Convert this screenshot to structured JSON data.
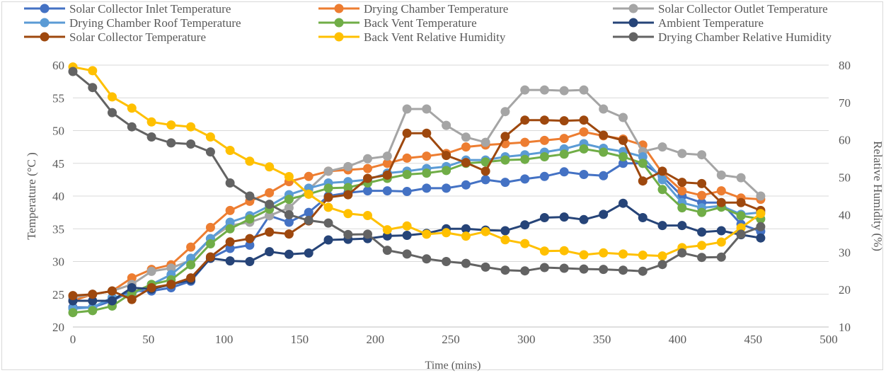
{
  "chart_data": {
    "type": "line",
    "xlabel": "Time (mins)",
    "ylabel": "Temperature (°C )",
    "y2label": "Relative Humidity (%)",
    "xlim": [
      0,
      500
    ],
    "ylim": [
      20,
      60
    ],
    "y2lim": [
      10,
      80
    ],
    "xticks": [
      "0",
      "50",
      "100",
      "150",
      "200",
      "250",
      "300",
      "350",
      "400",
      "450",
      "500"
    ],
    "yticks": [
      "20",
      "25",
      "30",
      "35",
      "40",
      "45",
      "50",
      "55",
      "60"
    ],
    "y2ticks": [
      "10",
      "20",
      "30",
      "40",
      "50",
      "60",
      "70",
      "80"
    ],
    "grid": true,
    "legend_position": "top",
    "x": [
      0,
      13,
      26,
      39,
      52,
      65,
      78,
      91,
      104,
      117,
      130,
      143,
      156,
      169,
      182,
      195,
      208,
      221,
      234,
      247,
      260,
      273,
      286,
      299,
      312,
      325,
      338,
      351,
      364,
      377,
      390,
      403,
      416,
      429,
      442,
      455
    ],
    "series": [
      {
        "name": "Solar Collector Inlet Temperature",
        "axis": "left",
        "color": "#4472C4",
        "values": [
          23.0,
          23.0,
          24.0,
          25.5,
          25.5,
          26.0,
          27.0,
          30.5,
          32.0,
          32.5,
          37.0,
          36.0,
          37.5,
          40.0,
          40.5,
          40.8,
          40.8,
          40.7,
          41.2,
          41.2,
          41.7,
          42.5,
          42.1,
          42.6,
          43.0,
          43.7,
          43.3,
          43.1,
          45.0,
          45.0,
          43.0,
          40.0,
          39.0,
          39.0,
          35.7,
          34.6
        ]
      },
      {
        "name": "Drying Chamber Temperature",
        "axis": "left",
        "color": "#ED7D31",
        "values": [
          24.0,
          25.0,
          25.5,
          27.5,
          28.8,
          29.5,
          32.2,
          35.2,
          37.8,
          39.2,
          40.5,
          42.2,
          43.0,
          43.8,
          44.0,
          44.2,
          45.0,
          45.8,
          46.1,
          46.5,
          47.5,
          47.8,
          48.0,
          48.2,
          48.5,
          48.8,
          49.8,
          49.2,
          48.7,
          47.8,
          43.5,
          40.8,
          40.1,
          40.8,
          39.7,
          39.5
        ]
      },
      {
        "name": "Solar Collector Outlet Temperature",
        "axis": "left",
        "color": "#A5A5A5",
        "values": [
          24.5,
          25.0,
          25.5,
          26.5,
          28.5,
          29.0,
          30.2,
          33.5,
          35.5,
          36.0,
          37.0,
          38.2,
          41.0,
          43.8,
          44.5,
          45.7,
          46.1,
          53.3,
          53.3,
          50.8,
          49.0,
          48.2,
          52.9,
          56.2,
          56.2,
          56.1,
          56.2,
          53.3,
          52.0,
          46.8,
          47.5,
          46.5,
          46.3,
          43.2,
          42.8,
          40.0
        ]
      },
      {
        "name": "Drying Chamber Roof Temperature",
        "axis": "left",
        "color": "#5B9BD5",
        "values": [
          22.8,
          23.0,
          24.5,
          25.0,
          26.5,
          28.0,
          30.5,
          33.5,
          36.0,
          37.0,
          38.5,
          40.2,
          41.2,
          42.0,
          42.2,
          42.5,
          43.5,
          43.8,
          44.2,
          44.5,
          45.5,
          45.5,
          46.0,
          46.3,
          46.7,
          47.2,
          48.0,
          47.3,
          46.8,
          46.0,
          42.5,
          39.0,
          38.2,
          38.5,
          37.2,
          37.5
        ]
      },
      {
        "name": "Back Vent Temperature",
        "axis": "left",
        "color": "#70AD47",
        "values": [
          22.2,
          22.5,
          23.2,
          25.2,
          26.5,
          27.2,
          29.5,
          32.7,
          35.0,
          36.5,
          38.0,
          39.5,
          40.3,
          41.2,
          41.3,
          42.0,
          42.7,
          43.3,
          43.5,
          43.9,
          45.0,
          45.2,
          45.5,
          45.6,
          46.0,
          46.4,
          47.2,
          46.7,
          46.0,
          45.0,
          41.0,
          38.2,
          37.5,
          38.3,
          37.0,
          36.5
        ]
      },
      {
        "name": "Ambient Temperature",
        "axis": "left",
        "color": "#264478",
        "values": [
          24.0,
          24.0,
          24.0,
          26.0,
          25.8,
          26.5,
          27.2,
          30.5,
          30.1,
          30.0,
          31.5,
          31.1,
          31.3,
          33.3,
          33.4,
          33.5,
          33.9,
          34.0,
          34.3,
          35.0,
          35.0,
          34.8,
          34.7,
          35.6,
          36.7,
          36.8,
          36.4,
          37.2,
          38.9,
          36.7,
          35.5,
          35.5,
          34.5,
          34.7,
          34.1,
          33.6
        ]
      },
      {
        "name": "Solar Collector Temperature",
        "axis": "left",
        "color": "#9E480E",
        "values": [
          24.8,
          25.0,
          25.5,
          24.2,
          26.0,
          26.5,
          27.5,
          30.7,
          33.0,
          33.5,
          34.5,
          34.2,
          36.2,
          39.8,
          40.2,
          42.7,
          43.2,
          49.6,
          49.6,
          46.2,
          45.1,
          43.8,
          49.1,
          51.6,
          51.6,
          51.5,
          51.6,
          49.3,
          48.5,
          42.3,
          43.8,
          42.1,
          41.9,
          39.0,
          39.0,
          37.8
        ]
      },
      {
        "name": "Back Vent Relative Humidity",
        "axis": "right",
        "color": "#FFC000",
        "values": [
          79.5,
          78.5,
          71.5,
          68.5,
          64.8,
          64.0,
          63.5,
          60.8,
          57.2,
          54.3,
          52.8,
          50.2,
          45.5,
          42.0,
          40.3,
          39.8,
          36.0,
          37.0,
          34.8,
          35.2,
          34.3,
          35.5,
          33.3,
          32.3,
          30.3,
          30.4,
          29.3,
          29.8,
          29.5,
          29.2,
          29.0,
          31.2,
          31.8,
          32.7,
          36.5,
          40.3
        ]
      },
      {
        "name": "Drying Chamber Relative Humidity",
        "axis": "right",
        "color": "#636363",
        "values": [
          78.3,
          74.0,
          67.3,
          63.5,
          60.8,
          59.2,
          58.9,
          56.8,
          48.5,
          45.0,
          42.8,
          40.0,
          38.5,
          37.8,
          34.7,
          34.8,
          30.5,
          29.5,
          28.2,
          27.5,
          27.0,
          26.0,
          25.2,
          25.0,
          25.9,
          25.7,
          25.5,
          25.4,
          25.2,
          24.9,
          26.7,
          29.8,
          28.6,
          28.7,
          34.8,
          36.8
        ]
      }
    ]
  }
}
